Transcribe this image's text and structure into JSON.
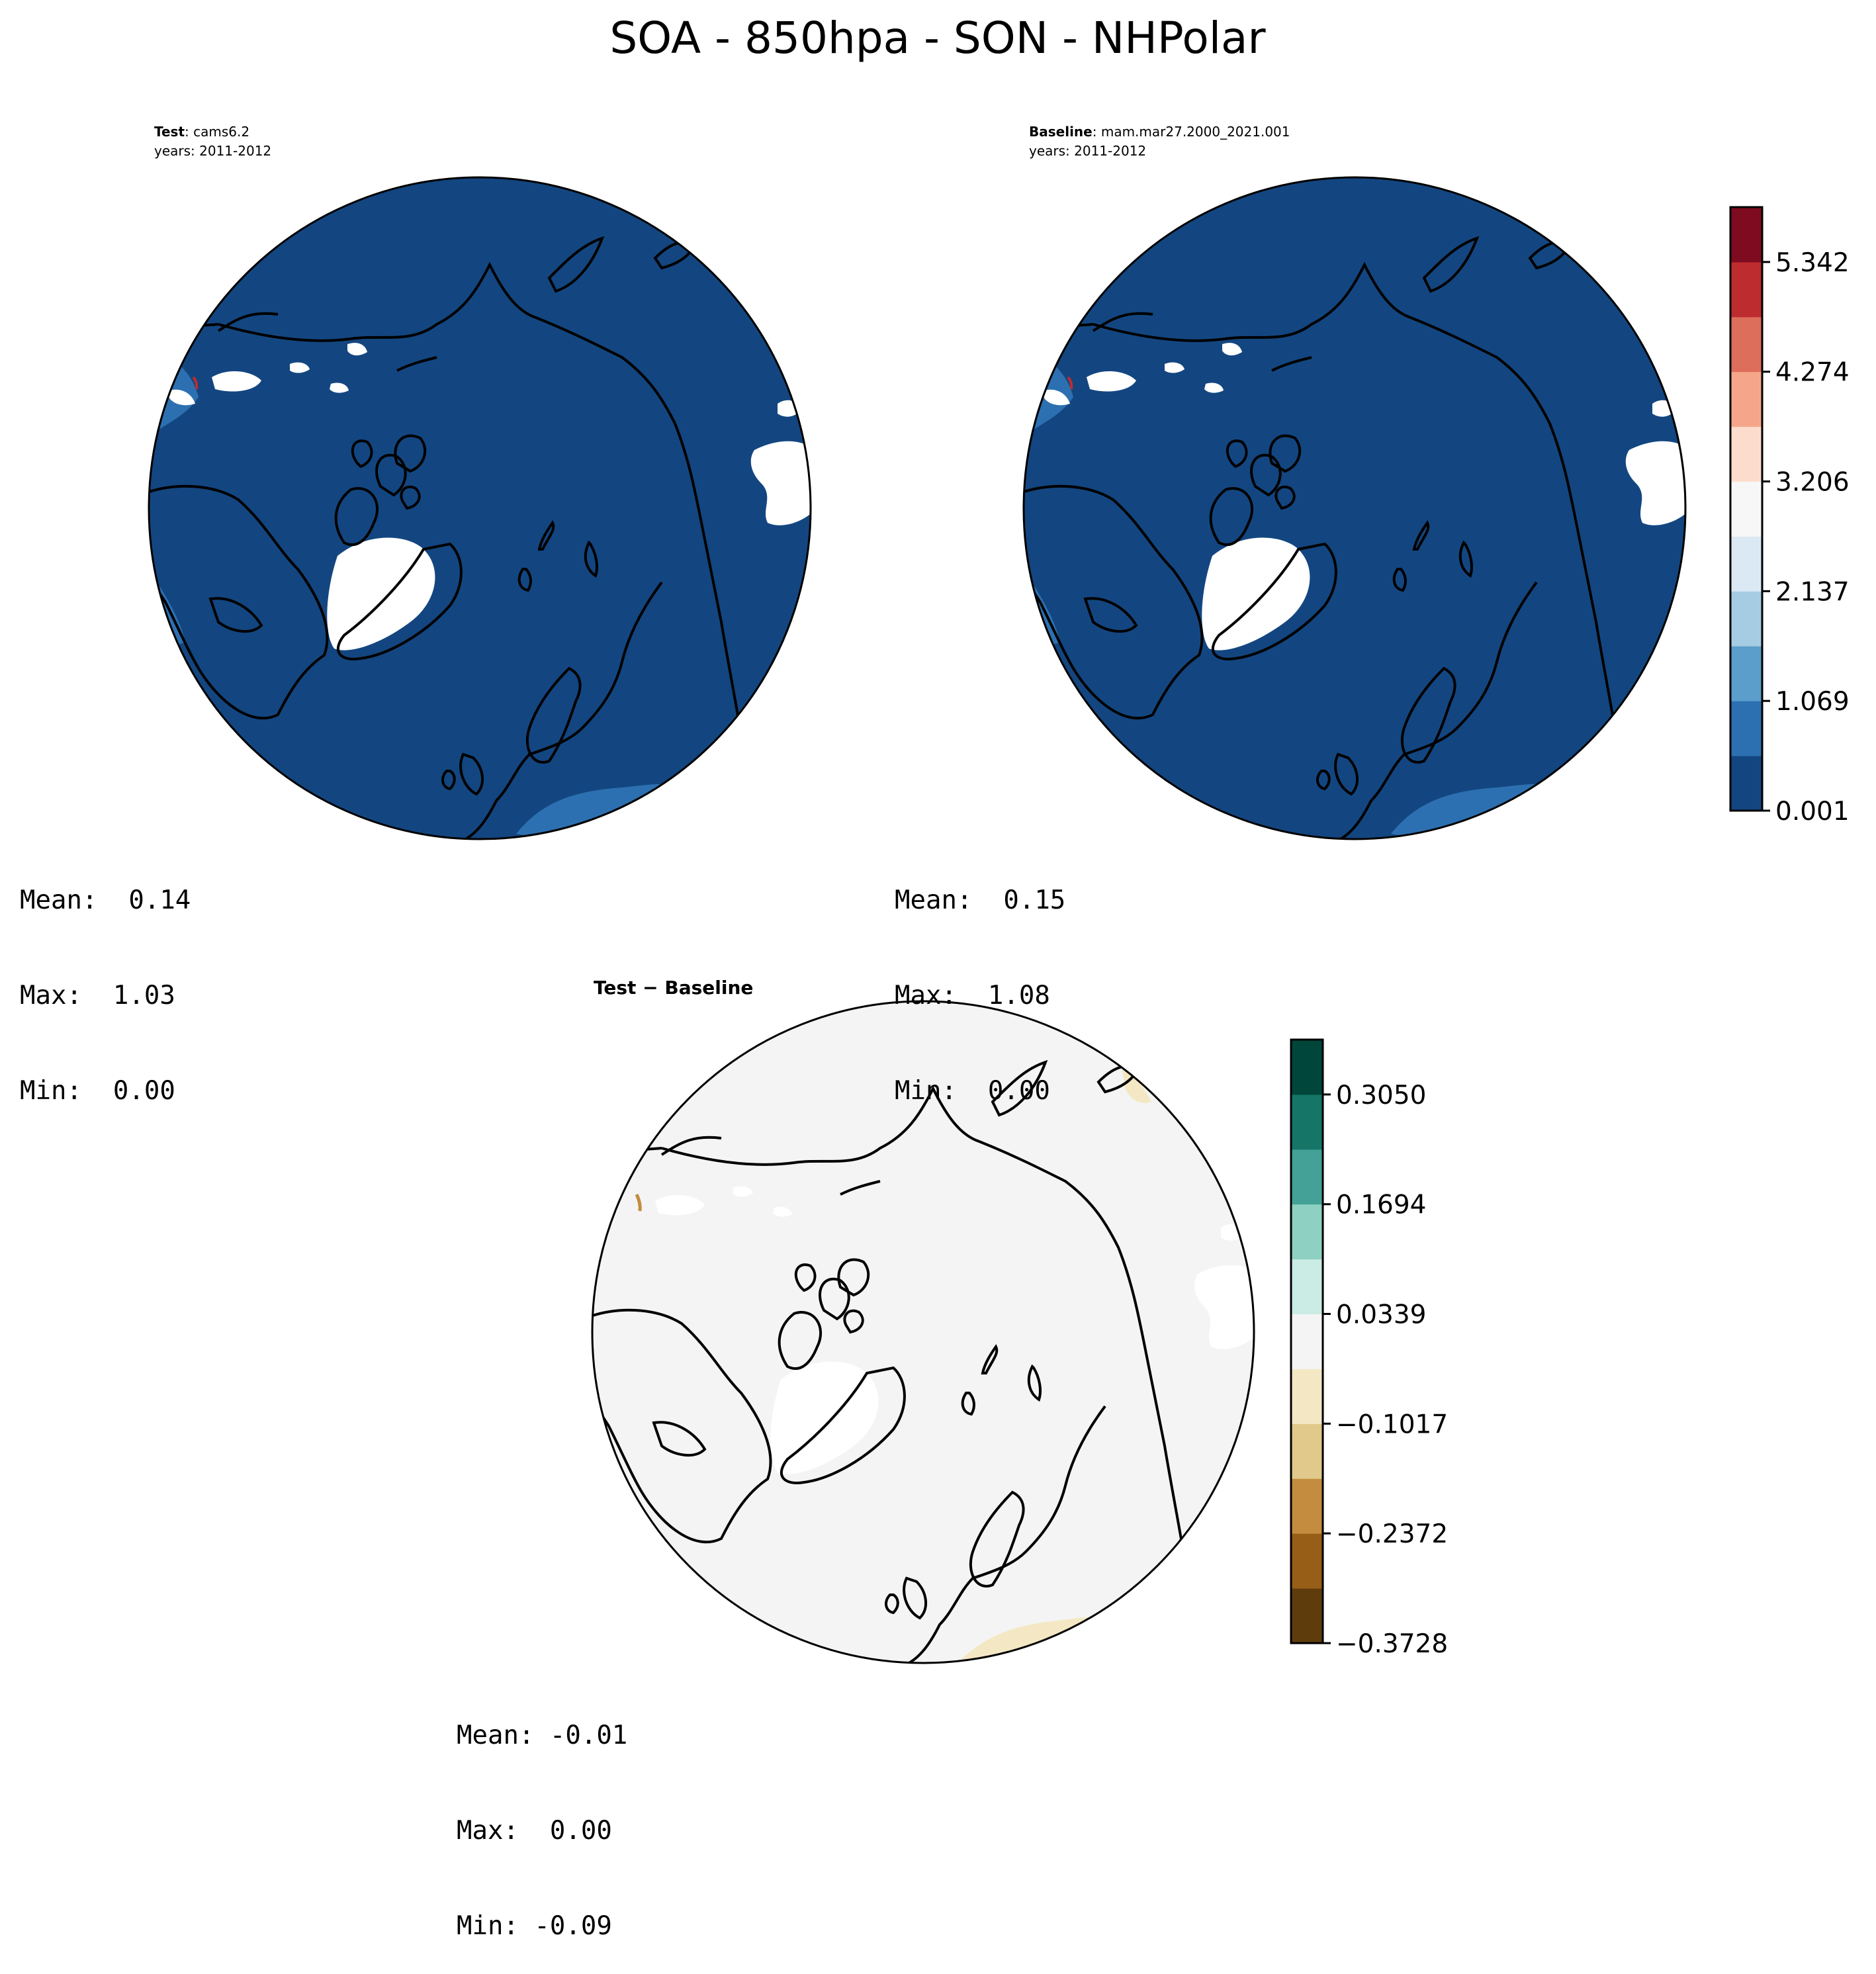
{
  "title": "SOA - 850hpa - SON - NHPolar",
  "panels": [
    {
      "id": "test",
      "header_bold": "Test",
      "header_text": ": cams6.2",
      "years": "years: 2011-2012",
      "stats": {
        "mean": "Mean:  0.14",
        "max": "Max:  1.03",
        "min": "Min:  0.00"
      }
    },
    {
      "id": "baseline",
      "header_bold": "Baseline",
      "header_text": ": mam.mar27.2000_2021.001",
      "years": "years: 2011-2012",
      "stats": {
        "mean": "Mean:  0.15",
        "max": "Max:  1.08",
        "min": "Min:  0.00"
      }
    },
    {
      "id": "diff",
      "header_bold": "Test − Baseline",
      "stats": {
        "mean": "Mean: -0.01",
        "max": "Max:  0.00",
        "min": "Min: -0.09"
      }
    }
  ],
  "colorbars": {
    "abs": {
      "colors": [
        "#134680",
        "#2c70b1",
        "#5b9dcb",
        "#a5cce2",
        "#dbe9f4",
        "#f7f7f7",
        "#fcddcd",
        "#f5a68a",
        "#dd6e5b",
        "#bd2c2f",
        "#7f0b21"
      ],
      "ticks": [
        "0.001",
        "1.069",
        "2.137",
        "3.206",
        "4.274",
        "5.342"
      ]
    },
    "diff": {
      "colors": [
        "#5f3c0c",
        "#965e16",
        "#c38c3f",
        "#e0c98a",
        "#f4e8c4",
        "#f4f4f4",
        "#cbebe5",
        "#8ed0c1",
        "#44a197",
        "#157566",
        "#00463a"
      ],
      "ticks": [
        "−0.3728",
        "−0.2372",
        "−0.1017",
        "0.0339",
        "0.1694",
        "0.3050"
      ]
    }
  },
  "map_colors": {
    "abs_base": "#134680",
    "abs_light": "#2c70b1",
    "abs_red": "#bd2c2f",
    "diff_base": "#f4f4f4",
    "diff_tan": "#f4e8c4",
    "diff_brown": "#c38c3f",
    "missing": "#ffffff",
    "coast": "#000000"
  }
}
